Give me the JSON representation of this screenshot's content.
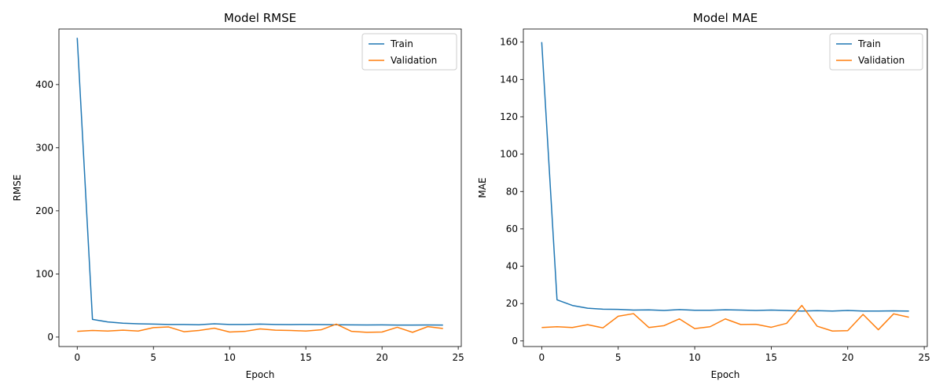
{
  "chart_data": [
    {
      "type": "line",
      "title": "Model RMSE",
      "xlabel": "Epoch",
      "ylabel": "RMSE",
      "xlim": [
        -1.2,
        25.2
      ],
      "ylim": [
        -15,
        488
      ],
      "xticks": [
        0,
        5,
        10,
        15,
        20,
        25
      ],
      "yticks": [
        0,
        100,
        200,
        300,
        400
      ],
      "legend": "top-right",
      "grid": false,
      "x": [
        0,
        1,
        2,
        3,
        4,
        5,
        6,
        7,
        8,
        9,
        10,
        11,
        12,
        13,
        14,
        15,
        16,
        17,
        18,
        19,
        20,
        21,
        22,
        23,
        24
      ],
      "series": [
        {
          "name": "Train",
          "color": "#1f77b4",
          "values": [
            474,
            28,
            24,
            22,
            21,
            20.5,
            20,
            20,
            19.5,
            21,
            20,
            20,
            20.5,
            20,
            19.8,
            20,
            19.8,
            19.5,
            19.3,
            19.2,
            19.3,
            19,
            19,
            19.2,
            19
          ]
        },
        {
          "name": "Validation",
          "color": "#ff7f0e",
          "values": [
            9,
            10.5,
            9.5,
            11,
            9.5,
            15,
            16,
            8.5,
            10.5,
            14,
            8,
            9,
            13,
            11,
            10.5,
            9.5,
            11.5,
            20.5,
            9,
            7.5,
            8,
            15.5,
            7.5,
            16.5,
            13.5
          ]
        }
      ]
    },
    {
      "type": "line",
      "title": "Model MAE",
      "xlabel": "Epoch",
      "ylabel": "MAE",
      "xlim": [
        -1.2,
        25.2
      ],
      "ylim": [
        -3,
        167
      ],
      "xticks": [
        0,
        5,
        10,
        15,
        20,
        25
      ],
      "yticks": [
        0,
        20,
        40,
        60,
        80,
        100,
        120,
        140,
        160
      ],
      "legend": "top-right",
      "grid": false,
      "x": [
        0,
        1,
        2,
        3,
        4,
        5,
        6,
        7,
        8,
        9,
        10,
        11,
        12,
        13,
        14,
        15,
        16,
        17,
        18,
        19,
        20,
        21,
        22,
        23,
        24
      ],
      "series": [
        {
          "name": "Train",
          "color": "#1f77b4",
          "values": [
            160,
            22,
            19,
            17.5,
            17,
            16.9,
            16.5,
            16.6,
            16.3,
            16.8,
            16.4,
            16.4,
            16.7,
            16.5,
            16.3,
            16.5,
            16.3,
            16,
            16.2,
            16,
            16.3,
            16,
            16,
            16.1,
            16
          ]
        },
        {
          "name": "Validation",
          "color": "#ff7f0e",
          "values": [
            7.2,
            7.6,
            7.2,
            8.7,
            7,
            13.2,
            14.6,
            7.2,
            8.2,
            11.8,
            6.6,
            7.6,
            11.8,
            8.8,
            8.9,
            7.3,
            9.4,
            19,
            7.9,
            5.3,
            5.5,
            14.2,
            6,
            14.5,
            12.7
          ]
        }
      ]
    }
  ]
}
